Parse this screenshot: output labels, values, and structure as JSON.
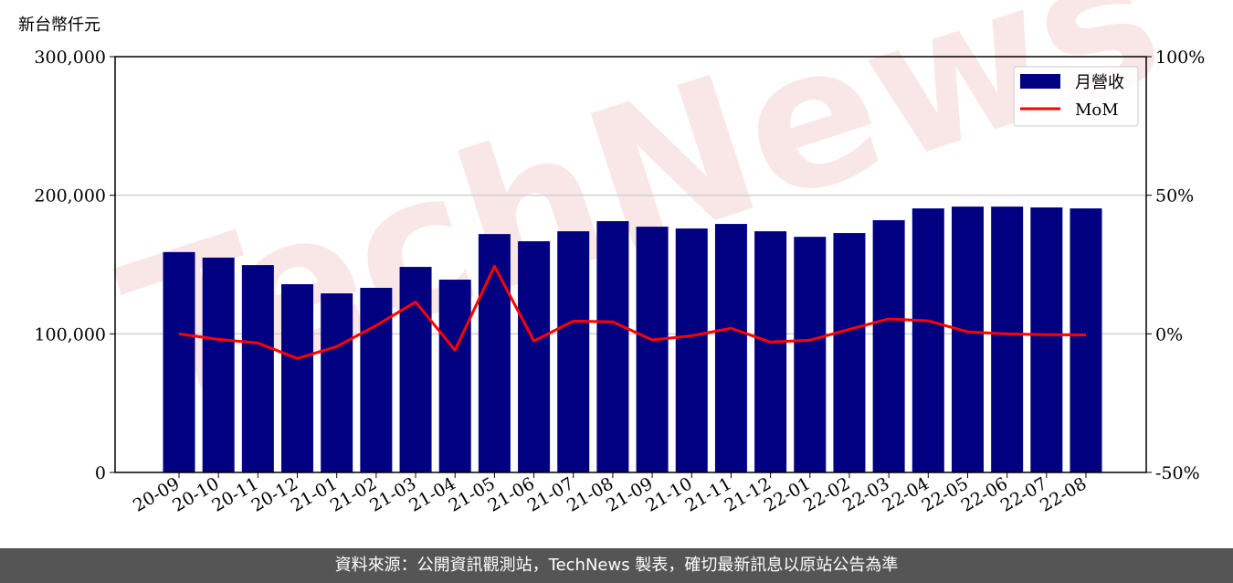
{
  "chart_data": {
    "type": "bar+line",
    "y_unit_label": "新台幣仟元",
    "categories": [
      "20-09",
      "20-10",
      "20-11",
      "20-12",
      "21-01",
      "21-02",
      "21-03",
      "21-04",
      "21-05",
      "21-06",
      "21-07",
      "21-08",
      "21-09",
      "21-10",
      "21-11",
      "21-12",
      "22-01",
      "22-02",
      "22-03",
      "22-04",
      "22-05",
      "22-06",
      "22-07",
      "22-08"
    ],
    "series": [
      {
        "name": "月營收",
        "type": "bar",
        "axis": "left",
        "color": "#000080",
        "values": [
          159000,
          155000,
          149600,
          135800,
          129200,
          133200,
          148300,
          139100,
          172000,
          166800,
          174000,
          181300,
          177300,
          176000,
          179300,
          174000,
          170000,
          172700,
          182000,
          190500,
          191800,
          191800,
          191200,
          190500
        ]
      },
      {
        "name": "MoM",
        "type": "line",
        "axis": "right",
        "color": "#ff0000",
        "values": [
          0,
          -2.0,
          -3.3,
          -8.9,
          -4.6,
          3.0,
          11.5,
          -5.9,
          24.4,
          -2.6,
          4.6,
          4.3,
          -2.2,
          -0.7,
          2.0,
          -3.0,
          -2.3,
          1.6,
          5.4,
          4.7,
          0.7,
          0,
          -0.3,
          -0.4
        ]
      }
    ],
    "ylim_left": [
      0,
      300000
    ],
    "ylim_right": [
      -50,
      100
    ],
    "left_ticks": [
      "0",
      "100,000",
      "200,000",
      "300,000"
    ],
    "left_tick_values": [
      0,
      100000,
      200000,
      300000
    ],
    "right_ticks": [
      "-50%",
      "0%",
      "50%",
      "100%"
    ],
    "right_tick_values": [
      -50,
      0,
      50,
      100
    ],
    "grid": "horizontal",
    "legend_placement": "top-right",
    "watermark": "TechNews"
  },
  "footer": {
    "text": "資料來源：公開資訊觀測站，TechNews 製表，確切最新訊息以原站公告為準"
  }
}
